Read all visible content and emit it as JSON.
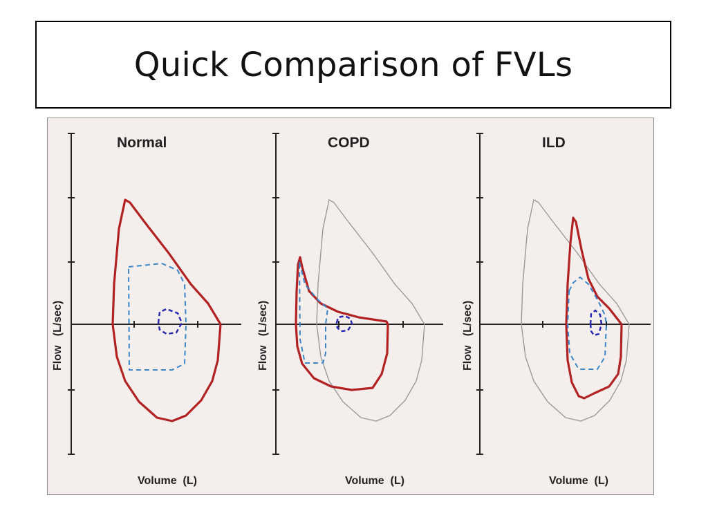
{
  "slide": {
    "title": "Quick Comparison of FVLs"
  },
  "panels": [
    {
      "title": "Normal",
      "ylabel": "Flow   (L/sec)",
      "xlabel": "Volume  (L)"
    },
    {
      "title": "COPD",
      "ylabel": "Flow   (L/sec)",
      "xlabel": "Volume  (L)"
    },
    {
      "title": "ILD",
      "ylabel": "Flow   (L/sec)",
      "xlabel": "Volume  (L)"
    }
  ],
  "colors": {
    "figure_background": "#f4eeec",
    "disease_loop": "#b22222",
    "tidal_loop": "#3a86c8",
    "small_loop": "#2a2ab0",
    "reference_loop": "#9a9a9a",
    "axes": "#222222"
  }
}
